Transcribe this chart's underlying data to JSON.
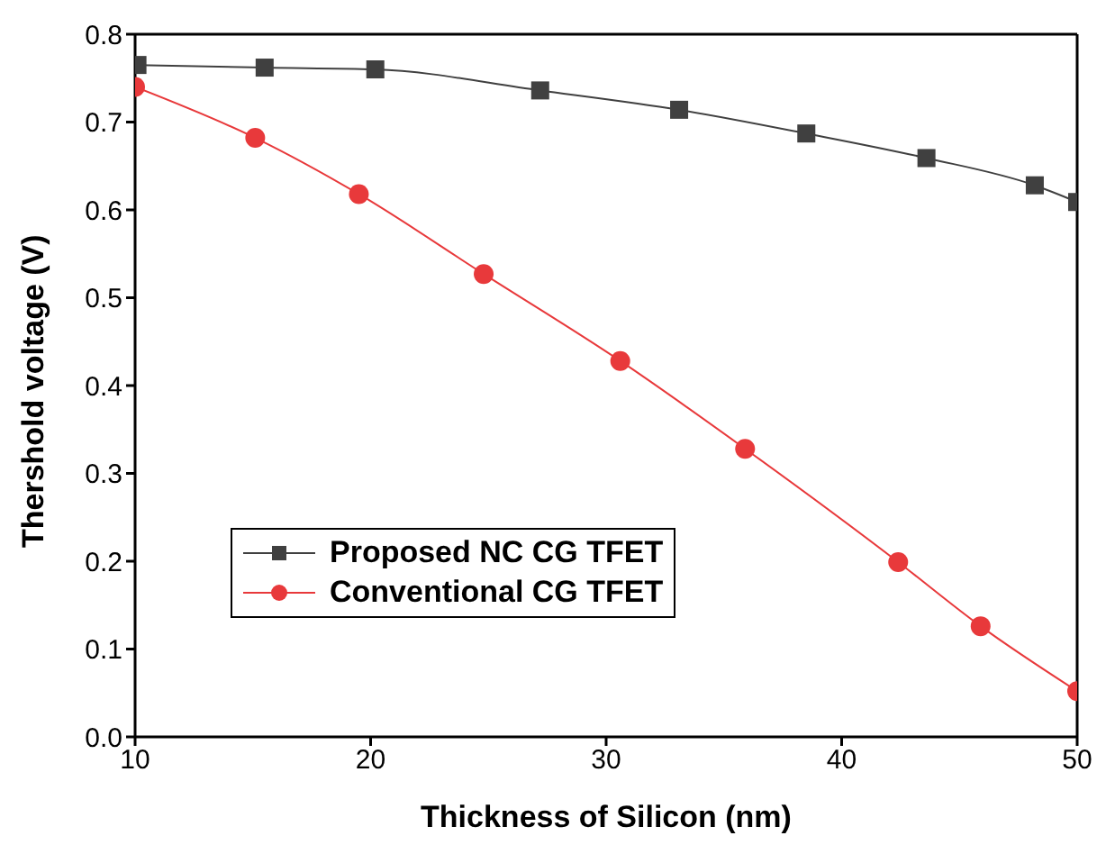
{
  "chart_data": {
    "type": "line",
    "xlabel": "Thickness of  Silicon (nm)",
    "ylabel": "Thershold voltage (V)",
    "xlim": [
      10,
      50
    ],
    "xticks": [
      10,
      20,
      30,
      40,
      50
    ],
    "ylim": [
      0,
      0.8
    ],
    "yticks": [
      {
        "value": 0,
        "label": "0.0"
      },
      0.1,
      0.2,
      0.3,
      0.4,
      0.5,
      0.6,
      0.7,
      0.8
    ],
    "legend": "bottom left",
    "line_style": "solid",
    "series": [
      {
        "name": "Proposed NC CG TFET",
        "color": "#404040",
        "marker": "square",
        "x": [
          10.1,
          15.5,
          20.2,
          27.2,
          33.1,
          38.5,
          43.6,
          48.2,
          50
        ],
        "values": [
          0.765,
          0.762,
          0.76,
          0.736,
          0.714,
          0.687,
          0.659,
          0.628,
          0.609
        ]
      },
      {
        "name": "Conventional CG TFET",
        "color": "#e8393b",
        "marker": "circle",
        "x": [
          10,
          15.1,
          19.5,
          24.8,
          30.6,
          35.9,
          42.4,
          45.9,
          50
        ],
        "values": [
          0.74,
          0.682,
          0.618,
          0.527,
          0.428,
          0.328,
          0.199,
          0.126,
          0.052
        ]
      }
    ]
  }
}
